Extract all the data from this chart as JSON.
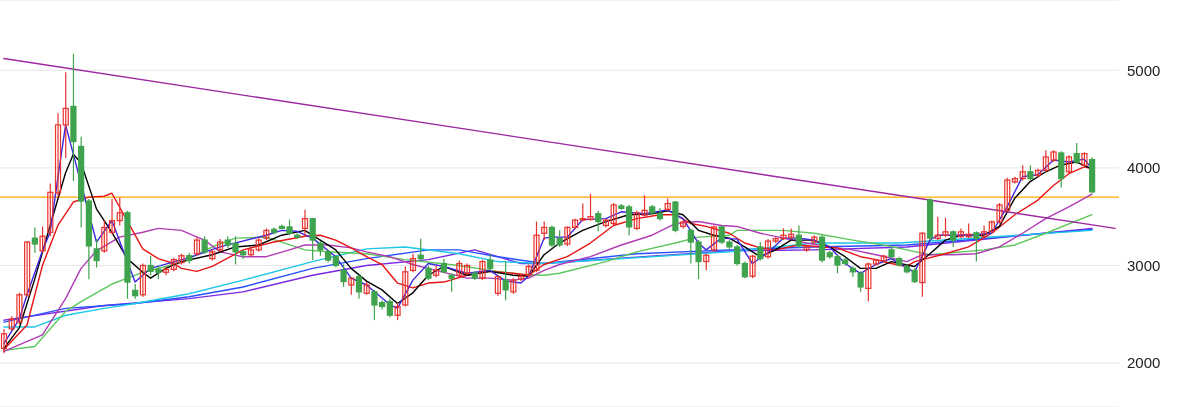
{
  "chart_data": {
    "type": "candlestick",
    "tick_labels": "y",
    "grid": "y",
    "ylim": [
      1550,
      5720
    ],
    "yticks": [
      2000,
      3000,
      4000,
      5000
    ],
    "categories": [
      null,
      null,
      null,
      null,
      null,
      null,
      null,
      null,
      null,
      null,
      null,
      null,
      null,
      null,
      null,
      null,
      null,
      null,
      null,
      null,
      null,
      null,
      null,
      null,
      null,
      null,
      null,
      null,
      null,
      null,
      null,
      null,
      null,
      null,
      null,
      null,
      null,
      null,
      null,
      null,
      null,
      null,
      null,
      null,
      null,
      null,
      null,
      null,
      null,
      null,
      null,
      null,
      null,
      null,
      null,
      null,
      null,
      null,
      null,
      null,
      null,
      null,
      null,
      null,
      null,
      null,
      null,
      null,
      null,
      null,
      null,
      null,
      null,
      null,
      null,
      null,
      null,
      null,
      null,
      null,
      null,
      null,
      null,
      null,
      null,
      null,
      null,
      null,
      null,
      null,
      null,
      null,
      null,
      null,
      null,
      null,
      null,
      null,
      null,
      null,
      null,
      null,
      null,
      null,
      null,
      null,
      null,
      null,
      null,
      null,
      null,
      null,
      null,
      null,
      null,
      null,
      null,
      null,
      null,
      null,
      null,
      null,
      null,
      null,
      null,
      null,
      null,
      null,
      null,
      null,
      null,
      null,
      null,
      null,
      null,
      null,
      null,
      null,
      null,
      null,
      null,
      null,
      null,
      null,
      null
    ],
    "ohlc": [
      [
        2150,
        2350,
        2100,
        2300
      ],
      [
        2350,
        2480,
        2330,
        2450
      ],
      [
        2420,
        2720,
        2400,
        2700
      ],
      [
        2700,
        3250,
        2680,
        3240
      ],
      [
        3280,
        3390,
        3130,
        3220
      ],
      [
        3150,
        3400,
        3130,
        3300
      ],
      [
        3340,
        3840,
        3300,
        3750
      ],
      [
        3745,
        4560,
        3700,
        4440
      ],
      [
        4440,
        4980,
        4100,
        4610
      ],
      [
        4630,
        5170,
        3865,
        4270
      ],
      [
        4220,
        4320,
        3390,
        3660
      ],
      [
        3660,
        3680,
        2860,
        3200
      ],
      [
        3170,
        3270,
        2980,
        3050
      ],
      [
        3150,
        3460,
        3130,
        3390
      ],
      [
        3340,
        3680,
        3320,
        3460
      ],
      [
        3460,
        3695,
        3410,
        3540
      ],
      [
        3540,
        3560,
        2660,
        2830
      ],
      [
        2745,
        2810,
        2660,
        2690
      ],
      [
        2700,
        3020,
        2680,
        3000
      ],
      [
        3000,
        3100,
        2900,
        2940
      ],
      [
        2960,
        3000,
        2860,
        2930
      ],
      [
        2930,
        2990,
        2900,
        2960
      ],
      [
        2960,
        3080,
        2940,
        3060
      ],
      [
        3030,
        3120,
        3010,
        3100
      ],
      [
        3100,
        3130,
        3020,
        3050
      ],
      [
        3120,
        3290,
        3100,
        3260
      ],
      [
        3260,
        3300,
        3120,
        3140
      ],
      [
        3070,
        3170,
        3050,
        3140
      ],
      [
        3160,
        3270,
        3140,
        3240
      ],
      [
        3260,
        3300,
        3180,
        3210
      ],
      [
        3225,
        3300,
        3010,
        3140
      ],
      [
        3140,
        3160,
        3070,
        3110
      ],
      [
        3110,
        3180,
        3090,
        3160
      ],
      [
        3160,
        3280,
        3140,
        3260
      ],
      [
        3280,
        3380,
        3260,
        3360
      ],
      [
        3370,
        3390,
        3320,
        3340
      ],
      [
        3400,
        3420,
        3370,
        3380
      ],
      [
        3395,
        3470,
        3310,
        3330
      ],
      [
        3310,
        3330,
        3270,
        3290
      ],
      [
        3380,
        3570,
        3300,
        3480
      ],
      [
        3480,
        3490,
        3055,
        3260
      ],
      [
        3225,
        3250,
        3100,
        3160
      ],
      [
        3140,
        3160,
        3030,
        3055
      ],
      [
        3090,
        3110,
        2980,
        3000
      ],
      [
        2950,
        3010,
        2780,
        2835
      ],
      [
        2800,
        2880,
        2700,
        2870
      ],
      [
        2885,
        2900,
        2660,
        2730
      ],
      [
        2715,
        2830,
        2700,
        2800
      ],
      [
        2730,
        2750,
        2440,
        2595
      ],
      [
        2620,
        2640,
        2550,
        2580
      ],
      [
        2630,
        2660,
        2470,
        2490
      ],
      [
        2490,
        2620,
        2440,
        2580
      ],
      [
        2595,
        2990,
        2580,
        2935
      ],
      [
        2950,
        3120,
        2930,
        3070
      ],
      [
        3105,
        3275,
        3040,
        3070
      ],
      [
        2970,
        3000,
        2850,
        2870
      ],
      [
        2900,
        3000,
        2880,
        2950
      ],
      [
        3020,
        3070,
        2920,
        2935
      ],
      [
        2900,
        2920,
        2730,
        2870
      ],
      [
        2900,
        3050,
        2880,
        3020
      ],
      [
        2920,
        3020,
        2900,
        3000
      ],
      [
        2920,
        2940,
        2850,
        2870
      ],
      [
        2870,
        3060,
        2850,
        3040
      ],
      [
        3055,
        3120,
        2950,
        2970
      ],
      [
        2715,
        2900,
        2690,
        2885
      ],
      [
        2850,
        3040,
        2645,
        2750
      ],
      [
        2730,
        2870,
        2710,
        2850
      ],
      [
        2860,
        2910,
        2840,
        2890
      ],
      [
        2900,
        3010,
        2880,
        2990
      ],
      [
        2950,
        3450,
        2930,
        3310
      ],
      [
        3330,
        3450,
        3260,
        3390
      ],
      [
        3390,
        3410,
        3190,
        3210
      ],
      [
        3275,
        3360,
        3190,
        3210
      ],
      [
        3220,
        3400,
        3200,
        3390
      ],
      [
        3390,
        3480,
        3370,
        3465
      ],
      [
        3465,
        3635,
        3450,
        3480
      ],
      [
        3470,
        3735,
        3460,
        3500
      ],
      [
        3530,
        3560,
        3350,
        3450
      ],
      [
        3410,
        3480,
        3390,
        3465
      ],
      [
        3430,
        3640,
        3410,
        3620
      ],
      [
        3610,
        3630,
        3570,
        3585
      ],
      [
        3600,
        3620,
        3310,
        3395
      ],
      [
        3380,
        3560,
        3360,
        3540
      ],
      [
        3515,
        3720,
        3500,
        3565
      ],
      [
        3600,
        3620,
        3520,
        3540
      ],
      [
        3530,
        3590,
        3460,
        3480
      ],
      [
        3575,
        3685,
        3560,
        3635
      ],
      [
        3650,
        3660,
        3340,
        3360
      ],
      [
        3400,
        3460,
        3380,
        3445
      ],
      [
        3360,
        3380,
        3020,
        3240
      ],
      [
        3240,
        3260,
        2860,
        3040
      ],
      [
        3040,
        3120,
        2950,
        3105
      ],
      [
        3160,
        3410,
        3140,
        3395
      ],
      [
        3395,
        3410,
        3220,
        3240
      ],
      [
        3240,
        3260,
        3170,
        3190
      ],
      [
        3190,
        3210,
        3000,
        3020
      ],
      [
        3020,
        3040,
        2870,
        2885
      ],
      [
        2890,
        3110,
        2870,
        3095
      ],
      [
        3190,
        3240,
        3050,
        3070
      ],
      [
        3090,
        3270,
        3070,
        3250
      ],
      [
        3250,
        3290,
        3230,
        3275
      ],
      [
        3275,
        3380,
        3260,
        3310
      ],
      [
        3290,
        3380,
        3270,
        3320
      ],
      [
        3310,
        3410,
        3180,
        3200
      ],
      [
        3160,
        3210,
        3140,
        3190
      ],
      [
        3240,
        3310,
        3220,
        3290
      ],
      [
        3290,
        3310,
        3030,
        3055
      ],
      [
        3130,
        3150,
        3070,
        3090
      ],
      [
        3090,
        3110,
        2920,
        3005
      ],
      [
        3055,
        3080,
        3000,
        3020
      ],
      [
        2970,
        2990,
        2885,
        2935
      ],
      [
        2920,
        2940,
        2730,
        2780
      ],
      [
        2765,
        3030,
        2630,
        3015
      ],
      [
        3015,
        3070,
        3000,
        3055
      ],
      [
        3050,
        3110,
        3030,
        3095
      ],
      [
        3160,
        3180,
        3070,
        3090
      ],
      [
        3070,
        3090,
        2990,
        3005
      ],
      [
        2990,
        3010,
        2920,
        2935
      ],
      [
        2950,
        2970,
        2820,
        2835
      ],
      [
        2825,
        3340,
        2680,
        3330
      ],
      [
        3670,
        3690,
        3260,
        3280
      ],
      [
        3277,
        3500,
        3260,
        3310
      ],
      [
        3310,
        3490,
        3290,
        3345
      ],
      [
        3345,
        3360,
        3190,
        3260
      ],
      [
        3295,
        3380,
        3280,
        3345
      ],
      [
        3295,
        3430,
        3280,
        3320
      ],
      [
        3335,
        3350,
        3040,
        3277
      ],
      [
        3295,
        3410,
        3280,
        3345
      ],
      [
        3345,
        3460,
        3330,
        3447
      ],
      [
        3447,
        3640,
        3430,
        3620
      ],
      [
        3567,
        3900,
        3550,
        3875
      ],
      [
        3855,
        3910,
        3840,
        3890
      ],
      [
        3890,
        4027,
        3870,
        3960
      ],
      [
        3960,
        4027,
        3870,
        3890
      ],
      [
        3925,
        3990,
        3900,
        3975
      ],
      [
        3975,
        4180,
        3960,
        4112
      ],
      [
        4078,
        4180,
        4060,
        4163
      ],
      [
        4153,
        4170,
        3800,
        3890
      ],
      [
        3960,
        4130,
        3940,
        4112
      ],
      [
        4146,
        4255,
        4040,
        4060
      ],
      [
        4027,
        4160,
        4010,
        4146
      ],
      [
        4085,
        4110,
        3740,
        3754
      ],
      null,
      null,
      null
    ],
    "colors": [
      "#e8322e",
      "#e8322e",
      "#e8322e",
      "#e8322e",
      "#3fa34d",
      "#e8322e",
      "#e8322e",
      "#e8322e",
      "#e8322e",
      "#3fa34d",
      "#3fa34d",
      "#3fa34d",
      "#3fa34d",
      "#e8322e",
      "#e8322e",
      "#e8322e",
      "#3fa34d",
      "#3fa34d",
      "#e8322e",
      "#3fa34d",
      "#3fa34d",
      "#e8322e",
      "#e8322e",
      "#e8322e",
      "#3fa34d",
      "#e8322e",
      "#3fa34d",
      "#e8322e",
      "#e8322e",
      "#3fa34d",
      "#3fa34d",
      "#3fa34d",
      "#e8322e",
      "#e8322e",
      "#e8322e",
      "#3fa34d",
      "#3fa34d",
      "#3fa34d",
      "#3fa34d",
      "#e8322e",
      "#3fa34d",
      "#3fa34d",
      "#3fa34d",
      "#3fa34d",
      "#3fa34d",
      "#e8322e",
      "#3fa34d",
      "#e8322e",
      "#3fa34d",
      "#3fa34d",
      "#3fa34d",
      "#e8322e",
      "#e8322e",
      "#e8322e",
      "#3fa34d",
      "#3fa34d",
      "#e8322e",
      "#3fa34d",
      "#3fa34d",
      "#e8322e",
      "#e8322e",
      "#3fa34d",
      "#e8322e",
      "#3fa34d",
      "#e8322e",
      "#3fa34d",
      "#e8322e",
      "#e8322e",
      "#e8322e",
      "#e8322e",
      "#e8322e",
      "#3fa34d",
      "#3fa34d",
      "#e8322e",
      "#e8322e",
      "#e8322e",
      "#e8322e",
      "#3fa34d",
      "#e8322e",
      "#e8322e",
      "#3fa34d",
      "#3fa34d",
      "#e8322e",
      "#e8322e",
      "#3fa34d",
      "#3fa34d",
      "#e8322e",
      "#3fa34d",
      "#e8322e",
      "#3fa34d",
      "#3fa34d",
      "#e8322e",
      "#e8322e",
      "#3fa34d",
      "#3fa34d",
      "#3fa34d",
      "#3fa34d",
      "#e8322e",
      "#3fa34d",
      "#e8322e",
      "#e8322e",
      "#e8322e",
      "#e8322e",
      "#3fa34d",
      "#e8322e",
      "#e8322e",
      "#3fa34d",
      "#3fa34d",
      "#3fa34d",
      "#3fa34d",
      "#3fa34d",
      "#3fa34d",
      "#e8322e",
      "#e8322e",
      "#e8322e",
      "#3fa34d",
      "#3fa34d",
      "#3fa34d",
      "#3fa34d",
      "#e8322e",
      "#3fa34d",
      "#e8322e",
      "#e8322e",
      "#3fa34d",
      "#e8322e",
      "#e8322e",
      "#3fa34d",
      "#e8322e",
      "#e8322e",
      "#e8322e",
      "#e8322e",
      "#e8322e",
      "#e8322e",
      "#3fa34d",
      "#e8322e",
      "#e8322e",
      "#e8322e",
      "#3fa34d",
      "#e8322e",
      "#3fa34d",
      "#e8322e",
      "#3fa34d",
      null,
      null,
      null
    ],
    "series": [
      {
        "type": "line",
        "color": "#7a28e6",
        "values": [
          2440,
          null,
          null,
          null,
          null,
          null,
          null,
          null,
          null,
          null,
          null,
          null,
          null,
          2590,
          null,
          null,
          null,
          null,
          null,
          null,
          null,
          null,
          null,
          null,
          2660,
          null,
          null,
          null,
          null,
          null,
          null,
          2730,
          null,
          null,
          null,
          null,
          null,
          null,
          null,
          null,
          2900,
          null,
          null,
          null,
          null,
          null,
          null,
          3000,
          null,
          null,
          null,
          null,
          null,
          null,
          null,
          3060,
          null,
          null,
          null,
          null,
          null,
          3160,
          null,
          null,
          null,
          null,
          null,
          3020,
          null,
          null,
          3020,
          null,
          null,
          null,
          null,
          null,
          null,
          null,
          null,
          null,
          null,
          null,
          null,
          null,
          null,
          null,
          null,
          null,
          null,
          null,
          null,
          null,
          null,
          null,
          3150,
          null,
          null,
          null,
          null,
          null,
          null,
          null,
          null,
          null,
          null,
          3160,
          null,
          null,
          null,
          null,
          null,
          null,
          null,
          null,
          null,
          null,
          null,
          3190,
          null,
          null,
          null,
          null,
          null,
          null,
          null,
          null,
          null,
          null,
          null,
          null,
          null,
          null,
          null,
          null,
          null,
          null,
          null,
          null,
          null,
          null,
          null,
          3380,
          null,
          null,
          null
        ]
      },
      {
        "type": "line",
        "color": "#2850ff",
        "values": [
          2420,
          null,
          null,
          null,
          null,
          null,
          null,
          null,
          2560,
          null,
          null,
          null,
          null,
          null,
          null,
          null,
          null,
          2610,
          null,
          null,
          null,
          null,
          null,
          null,
          2680,
          null,
          null,
          null,
          null,
          null,
          null,
          2780,
          null,
          null,
          null,
          null,
          null,
          null,
          null,
          null,
          2970,
          null,
          null,
          null,
          null,
          null,
          null,
          3070,
          null,
          null,
          null,
          null,
          null,
          null,
          null,
          3160,
          null,
          null,
          null,
          3160,
          null,
          null,
          null,
          null,
          3090,
          null,
          null,
          null,
          null,
          null,
          3020,
          null,
          null,
          null,
          null,
          null,
          null,
          null,
          null,
          null,
          null,
          null,
          3120,
          null,
          null,
          null,
          null,
          null,
          null,
          null,
          null,
          null,
          null,
          null,
          3160,
          null,
          null,
          null,
          null,
          null,
          null,
          null,
          null,
          null,
          null,
          3190,
          null,
          null,
          null,
          null,
          null,
          null,
          null,
          null,
          null,
          null,
          null,
          3210,
          null,
          null,
          null,
          null,
          null,
          null,
          null,
          null,
          null,
          null,
          null,
          null,
          null,
          null,
          null,
          null,
          null,
          null,
          null,
          null,
          null,
          null,
          null,
          3370,
          null,
          null,
          null
        ]
      },
      {
        "type": "line",
        "color": "#1ec8e6",
        "values": [
          2370,
          null,
          null,
          null,
          2370,
          null,
          null,
          null,
          2490,
          null,
          null,
          null,
          null,
          2560,
          null,
          null,
          null,
          2610,
          null,
          null,
          null,
          null,
          null,
          null,
          2710,
          null,
          null,
          null,
          null,
          null,
          null,
          2850,
          null,
          null,
          null,
          null,
          null,
          null,
          null,
          null,
          3040,
          null,
          null,
          null,
          null,
          null,
          null,
          3170,
          null,
          null,
          null,
          null,
          3190,
          null,
          null,
          null,
          null,
          null,
          null,
          3120,
          null,
          null,
          null,
          null,
          3040,
          null,
          null,
          null,
          null,
          null,
          3020,
          null,
          null,
          null,
          null,
          null,
          null,
          null,
          null,
          null,
          null,
          null,
          null,
          null,
          null,
          null,
          null,
          null,
          null,
          null,
          null,
          null,
          null,
          null,
          3140,
          null,
          null,
          null,
          null,
          null,
          null,
          null,
          null,
          null,
          null,
          3230,
          null,
          null,
          null,
          null,
          null,
          null,
          null,
          null,
          null,
          null,
          3230,
          null,
          null,
          null,
          null,
          null,
          null,
          null,
          null,
          null,
          null,
          null,
          null,
          null,
          null,
          null,
          null,
          null,
          null,
          null,
          null,
          null,
          null,
          null,
          null,
          3360,
          null,
          null,
          null
        ]
      },
      {
        "type": "line",
        "color": "#5cc75c",
        "values": [
          2130,
          null,
          null,
          null,
          2170,
          null,
          null,
          null,
          2530,
          null,
          2630,
          null,
          null,
          null,
          2810,
          null,
          null,
          null,
          2930,
          null,
          null,
          null,
          null,
          3030,
          null,
          null,
          null,
          3190,
          null,
          null,
          3280,
          null,
          null,
          null,
          3290,
          null,
          3240,
          null,
          null,
          3160,
          null,
          null,
          3140,
          null,
          null,
          null,
          null,
          3120,
          null,
          null,
          null,
          null,
          3060,
          null,
          null,
          null,
          null,
          null,
          null,
          3000,
          null,
          null,
          null,
          2950,
          null,
          null,
          null,
          2910,
          null,
          null,
          2900,
          null,
          2920,
          null,
          null,
          null,
          null,
          null,
          3040,
          null,
          null,
          null,
          3140,
          null,
          null,
          null,
          null,
          3230,
          null,
          null,
          3290,
          null,
          null,
          null,
          3310,
          3360,
          null,
          null,
          null,
          null,
          null,
          3360,
          null,
          null,
          null,
          3330,
          null,
          null,
          null,
          null,
          3260,
          null,
          null,
          null,
          3210,
          null,
          null,
          3160,
          null,
          null,
          3110,
          null,
          null,
          null,
          null,
          null,
          null,
          3160,
          null,
          null,
          null,
          3210,
          null,
          null,
          null,
          3330,
          null,
          null,
          null,
          null,
          null,
          3520,
          null,
          null,
          null
        ]
      },
      {
        "type": "line",
        "color": "#b03cb5",
        "values": [
          2120,
          null,
          null,
          null,
          null,
          2290,
          null,
          null,
          2660,
          null,
          2970,
          null,
          3150,
          null,
          null,
          3290,
          null,
          null,
          3340,
          null,
          3380,
          null,
          null,
          3360,
          null,
          null,
          3260,
          null,
          3140,
          null,
          null,
          3090,
          null,
          null,
          3090,
          null,
          null,
          3160,
          null,
          3210,
          null,
          null,
          3210,
          null,
          null,
          3180,
          null,
          3140,
          null,
          null,
          3090,
          null,
          null,
          3010,
          null,
          null,
          2950,
          null,
          null,
          null,
          2870,
          null,
          null,
          2870,
          null,
          null,
          2850,
          null,
          2870,
          null,
          2950,
          null,
          3010,
          null,
          null,
          null,
          3090,
          null,
          null,
          null,
          3210,
          null,
          null,
          null,
          3310,
          null,
          null,
          3430,
          null,
          null,
          3450,
          null,
          null,
          3410,
          null,
          3400,
          null,
          null,
          3330,
          null,
          null,
          3280,
          null,
          null,
          3230,
          null,
          null,
          3190,
          null,
          null,
          3160,
          null,
          null,
          3110,
          null,
          null,
          null,
          3040,
          null,
          3110,
          null,
          null,
          null,
          3110,
          null,
          null,
          3120,
          null,
          null,
          3190,
          null,
          null,
          3330,
          null,
          null,
          3480,
          null,
          null,
          3600,
          null,
          null,
          3730,
          null,
          null,
          null
        ]
      },
      {
        "type": "line",
        "color": "#e81414",
        "values": [
          2140,
          null,
          null,
          2390,
          null,
          3000,
          null,
          3410,
          null,
          3650,
          null,
          3700,
          null,
          3710,
          3740,
          null,
          null,
          null,
          3170,
          null,
          3070,
          null,
          3020,
          2970,
          null,
          2940,
          null,
          2990,
          null,
          null,
          null,
          3160,
          null,
          null,
          null,
          3240,
          null,
          null,
          null,
          3300,
          null,
          3310,
          null,
          3260,
          null,
          3180,
          null,
          3090,
          null,
          3010,
          null,
          2820,
          null,
          2770,
          null,
          2820,
          null,
          2830,
          null,
          null,
          2900,
          null,
          null,
          2940,
          null,
          null,
          2920,
          null,
          2900,
          null,
          3010,
          null,
          null,
          3090,
          null,
          null,
          3230,
          null,
          null,
          3410,
          null,
          null,
          3480,
          null,
          null,
          3520,
          null,
          3520,
          null,
          3430,
          null,
          3400,
          null,
          null,
          3330,
          null,
          3230,
          null,
          3180,
          null,
          3160,
          null,
          null,
          3210,
          null,
          null,
          3190,
          null,
          3180,
          null,
          null,
          3090,
          null,
          3060,
          null,
          3020,
          null,
          2990,
          3040,
          null,
          null,
          null,
          3120,
          null,
          null,
          3190,
          null,
          null,
          3330,
          null,
          null,
          3520,
          null,
          null,
          3670,
          null,
          3820,
          null,
          3940,
          null,
          4010,
          3990,
          null,
          null,
          null
        ]
      },
      {
        "type": "line",
        "color": "#000000",
        "values": [
          2150,
          null,
          2360,
          null,
          2860,
          null,
          3410,
          null,
          3950,
          4140,
          4050,
          null,
          3580,
          null,
          3340,
          null,
          3070,
          null,
          2930,
          2870,
          null,
          2970,
          null,
          3040,
          null,
          null,
          null,
          3110,
          null,
          null,
          3190,
          null,
          null,
          3210,
          null,
          null,
          3310,
          null,
          null,
          3360,
          null,
          3260,
          null,
          3160,
          null,
          2970,
          null,
          2840,
          null,
          2750,
          null,
          2610,
          null,
          2720,
          null,
          2900,
          null,
          2990,
          null,
          null,
          2900,
          null,
          null,
          2940,
          null,
          null,
          2900,
          null,
          2890,
          null,
          3110,
          null,
          3230,
          null,
          null,
          3360,
          null,
          null,
          3450,
          null,
          null,
          3520,
          null,
          null,
          3530,
          null,
          3560,
          null,
          3520,
          null,
          3360,
          null,
          3310,
          null,
          3280,
          null,
          3190,
          null,
          3090,
          null,
          3160,
          null,
          3260,
          null,
          null,
          3260,
          null,
          3190,
          null,
          3090,
          null,
          2970,
          null,
          2970,
          null,
          3040,
          null,
          null,
          2990,
          null,
          3120,
          null,
          3260,
          null,
          3310,
          null,
          null,
          3310,
          null,
          3400,
          null,
          3690,
          null,
          3860,
          null,
          3960,
          null,
          4030,
          null,
          4060,
          null,
          3990,
          null,
          null,
          null
        ]
      },
      {
        "type": "line",
        "color": "#3c28e0",
        "values": [
          2200,
          null,
          2450,
          2700,
          null,
          3150,
          3340,
          3900,
          4440,
          null,
          null,
          null,
          3240,
          null,
          3460,
          null,
          null,
          2830,
          null,
          2970,
          null,
          null,
          null,
          null,
          3080,
          null,
          null,
          null,
          3190,
          null,
          null,
          null,
          null,
          null,
          3310,
          null,
          3360,
          null,
          3350,
          null,
          3280,
          null,
          null,
          3090,
          null,
          2870,
          null,
          2800,
          null,
          null,
          2600,
          2560,
          null,
          2850,
          null,
          3020,
          null,
          2990,
          null,
          null,
          2920,
          null,
          null,
          2950,
          null,
          2840,
          null,
          2820,
          2890,
          null,
          3280,
          3290,
          null,
          3290,
          null,
          3470,
          null,
          null,
          3480,
          null,
          3550,
          null,
          null,
          3530,
          null,
          null,
          3570,
          null,
          3480,
          null,
          3230,
          3160,
          null,
          3280,
          null,
          3270,
          null,
          3020,
          null,
          3130,
          null,
          3280,
          null,
          3280,
          null,
          3260,
          null,
          3190,
          null,
          3020,
          null,
          2920,
          null,
          3010,
          null,
          3070,
          null,
          null,
          2930,
          null,
          3260,
          3310,
          null,
          null,
          null,
          3310,
          null,
          null,
          3330,
          null,
          3600,
          null,
          3910,
          null,
          3930,
          null,
          4080,
          null,
          4060,
          null,
          4090,
          3990,
          null,
          null,
          null
        ]
      },
      {
        "type": "line",
        "color": "#9c27a0",
        "values": [
          5120,
          null,
          null,
          null,
          null,
          null,
          null,
          null,
          null,
          null,
          null,
          null,
          null,
          null,
          null,
          null,
          null,
          null,
          null,
          null,
          null,
          null,
          null,
          null,
          null,
          null,
          null,
          null,
          null,
          null,
          null,
          null,
          null,
          null,
          null,
          null,
          null,
          null,
          null,
          null,
          null,
          null,
          null,
          null,
          null,
          null,
          null,
          null,
          null,
          null,
          null,
          null,
          null,
          null,
          null,
          null,
          null,
          null,
          null,
          null,
          null,
          null,
          null,
          null,
          null,
          null,
          null,
          null,
          null,
          null,
          null,
          null,
          null,
          null,
          null,
          null,
          null,
          null,
          null,
          null,
          null,
          null,
          null,
          null,
          null,
          null,
          null,
          null,
          null,
          null,
          null,
          null,
          null,
          null,
          null,
          null,
          null,
          null,
          null,
          null,
          null,
          null,
          null,
          null,
          null,
          null,
          null,
          null,
          null,
          null,
          null,
          null,
          null,
          null,
          null,
          null,
          null,
          null,
          null,
          null,
          null,
          null,
          null,
          null,
          null,
          null,
          null,
          null,
          null,
          null,
          null,
          null,
          null,
          null,
          null,
          null,
          null,
          null,
          null,
          null,
          null,
          null,
          null,
          null,
          3380
        ]
      }
    ],
    "ref_lines": [
      {
        "axis": "y",
        "value": 3700,
        "color": "#ffa500"
      }
    ]
  }
}
